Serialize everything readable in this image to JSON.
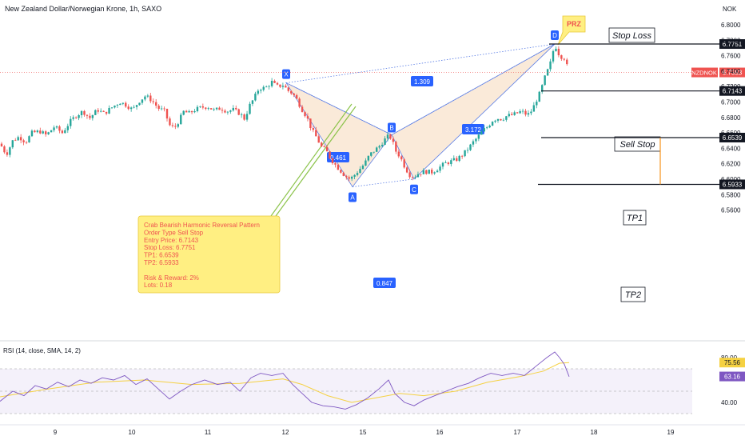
{
  "header": {
    "title": "New Zealand Dollar/Norwegian Krone, 1h, SAXO",
    "currency": "NOK"
  },
  "colors": {
    "up": "#26a69a",
    "down": "#ef5350",
    "pattern_fill": "#f8e3cc",
    "pattern_line": "#5b7ee5",
    "label_bg": "#2962ff",
    "annotation_bg": "#ffef82",
    "rsi_line": "#7e57c2",
    "rsi_ma": "#f5d142",
    "tp_marker": "#f7931a",
    "price_line": "#ef5350"
  },
  "chart_data": {
    "type": "candlestick",
    "symbol": "NZDNOK",
    "x_ticks": [
      "9",
      "10",
      "11",
      "12",
      "15",
      "16",
      "17",
      "18",
      "19"
    ],
    "y_ticks": [
      "6.8000",
      "6.7800",
      "6.7600",
      "6.7400",
      "6.7200",
      "6.7000",
      "6.6800",
      "6.6600",
      "6.6400",
      "6.6200",
      "6.6000",
      "6.5800",
      "6.5600"
    ],
    "ylim": [
      6.5535,
      6.819
    ],
    "current_price": {
      "label": "NZDNOK",
      "value": "6.7383",
      "number": 6.7383
    },
    "close_path": [
      [
        0,
        6.646
      ],
      [
        8,
        6.632
      ],
      [
        16,
        6.65
      ],
      [
        24,
        6.655
      ],
      [
        32,
        6.648
      ],
      [
        40,
        6.66
      ],
      [
        50,
        6.662
      ],
      [
        58,
        6.657
      ],
      [
        68,
        6.668
      ],
      [
        78,
        6.66
      ],
      [
        88,
        6.675
      ],
      [
        96,
        6.683
      ],
      [
        104,
        6.688
      ],
      [
        112,
        6.679
      ],
      [
        122,
        6.69
      ],
      [
        130,
        6.685
      ],
      [
        140,
        6.693
      ],
      [
        150,
        6.7
      ],
      [
        158,
        6.696
      ],
      [
        166,
        6.69
      ],
      [
        174,
        6.701
      ],
      [
        182,
        6.708
      ],
      [
        190,
        6.702
      ],
      [
        198,
        6.692
      ],
      [
        206,
        6.688
      ],
      [
        212,
        6.67
      ],
      [
        218,
        6.666
      ],
      [
        224,
        6.676
      ],
      [
        230,
        6.688
      ],
      [
        236,
        6.685
      ],
      [
        244,
        6.69
      ],
      [
        252,
        6.693
      ],
      [
        260,
        6.694
      ],
      [
        268,
        6.689
      ],
      [
        276,
        6.692
      ],
      [
        284,
        6.688
      ],
      [
        292,
        6.69
      ],
      [
        300,
        6.685
      ],
      [
        306,
        6.678
      ],
      [
        312,
        6.695
      ],
      [
        318,
        6.705
      ],
      [
        324,
        6.718
      ],
      [
        332,
        6.718
      ],
      [
        340,
        6.726
      ],
      [
        346,
        6.72
      ],
      [
        354,
        6.722
      ],
      [
        360,
        6.715
      ],
      [
        366,
        6.711
      ],
      [
        372,
        6.702
      ],
      [
        378,
        6.69
      ],
      [
        384,
        6.68
      ],
      [
        390,
        6.664
      ],
      [
        396,
        6.654
      ],
      [
        402,
        6.642
      ],
      [
        408,
        6.637
      ],
      [
        414,
        6.626
      ],
      [
        420,
        6.618
      ],
      [
        426,
        6.611
      ],
      [
        432,
        6.604
      ],
      [
        438,
        6.6
      ],
      [
        444,
        6.606
      ],
      [
        450,
        6.613
      ],
      [
        456,
        6.62
      ],
      [
        462,
        6.631
      ],
      [
        468,
        6.637
      ],
      [
        474,
        6.642
      ],
      [
        480,
        6.65
      ],
      [
        486,
        6.656
      ],
      [
        490,
        6.653
      ],
      [
        494,
        6.638
      ],
      [
        500,
        6.63
      ],
      [
        506,
        6.617
      ],
      [
        512,
        6.606
      ],
      [
        518,
        6.603
      ],
      [
        524,
        6.608
      ],
      [
        532,
        6.61
      ],
      [
        540,
        6.609
      ],
      [
        548,
        6.614
      ],
      [
        556,
        6.62
      ],
      [
        564,
        6.623
      ],
      [
        572,
        6.626
      ],
      [
        580,
        6.633
      ],
      [
        586,
        6.64
      ],
      [
        592,
        6.648
      ],
      [
        598,
        6.655
      ],
      [
        604,
        6.663
      ],
      [
        610,
        6.668
      ],
      [
        616,
        6.676
      ],
      [
        622,
        6.679
      ],
      [
        628,
        6.678
      ],
      [
        634,
        6.682
      ],
      [
        640,
        6.683
      ],
      [
        646,
        6.685
      ],
      [
        652,
        6.688
      ],
      [
        660,
        6.683
      ],
      [
        666,
        6.69
      ],
      [
        670,
        6.7
      ],
      [
        676,
        6.713
      ],
      [
        682,
        6.733
      ],
      [
        688,
        6.748
      ],
      [
        694,
        6.775
      ],
      [
        700,
        6.76
      ],
      [
        706,
        6.757
      ],
      [
        712,
        6.738
      ]
    ],
    "harmonic_pattern": {
      "name": "Crab Bearish Harmonic Reversal Pattern",
      "points": [
        {
          "label": "X",
          "bar": 358,
          "price": 6.7248
        },
        {
          "label": "A",
          "bar": 441,
          "price": 6.5901
        },
        {
          "label": "B",
          "bar": 490,
          "price": 6.6575
        },
        {
          "label": "C",
          "bar": 518,
          "price": 6.6002
        },
        {
          "label": "D",
          "bar": 694,
          "price": 6.7751
        }
      ],
      "ratios": [
        {
          "value": "1.309",
          "from": "X",
          "to": "D"
        },
        {
          "value": "0.461",
          "from": "X",
          "to": "B"
        },
        {
          "value": "0.847",
          "from": "A",
          "to": "C"
        },
        {
          "value": "3.172",
          "from": "B",
          "to": "D"
        }
      ],
      "prz_label": "PRZ"
    },
    "levels": [
      {
        "name": "Stop Loss",
        "price": 6.7751,
        "price_label": "6.7751"
      },
      {
        "name": "Sell Stop",
        "price": 6.7143,
        "price_label": "6.7143"
      },
      {
        "name": "TP1",
        "price": 6.6539,
        "price_label": "6.6539"
      },
      {
        "name": "TP2",
        "price": 6.5933,
        "price_label": "6.5933"
      }
    ],
    "annotation_lines": [
      "Crab Bearish Harmonic Reversal Pattern",
      "Order Type Sell Stop",
      "Entry Price: 6.7143",
      "Stop Loss: 6.7751",
      "TP1: 6.6539",
      "TP2: 6.5933",
      "",
      "Risk & Reward: 2%",
      "Lots: 0.18"
    ],
    "rsi": {
      "title": "RSI (14, close, SMA, 14, 2)",
      "ylim": [
        30,
        90
      ],
      "ticks": [
        "80.00",
        "40.00"
      ],
      "bands": [
        70,
        50,
        30
      ],
      "rsi_value": "63.16",
      "ma_value": "75.56",
      "rsi_path": [
        [
          0,
          41
        ],
        [
          16,
          50
        ],
        [
          30,
          46
        ],
        [
          44,
          55
        ],
        [
          58,
          52
        ],
        [
          72,
          58
        ],
        [
          86,
          54
        ],
        [
          100,
          60
        ],
        [
          114,
          57
        ],
        [
          128,
          62
        ],
        [
          142,
          60
        ],
        [
          156,
          64
        ],
        [
          170,
          56
        ],
        [
          184,
          61
        ],
        [
          198,
          52
        ],
        [
          212,
          43
        ],
        [
          226,
          50
        ],
        [
          240,
          56
        ],
        [
          256,
          60
        ],
        [
          272,
          56
        ],
        [
          288,
          58
        ],
        [
          300,
          50
        ],
        [
          314,
          62
        ],
        [
          326,
          66
        ],
        [
          340,
          64
        ],
        [
          354,
          66
        ],
        [
          366,
          56
        ],
        [
          378,
          48
        ],
        [
          390,
          40
        ],
        [
          404,
          37
        ],
        [
          418,
          36
        ],
        [
          432,
          34
        ],
        [
          446,
          38
        ],
        [
          460,
          44
        ],
        [
          474,
          52
        ],
        [
          486,
          60
        ],
        [
          494,
          48
        ],
        [
          506,
          40
        ],
        [
          518,
          37
        ],
        [
          530,
          42
        ],
        [
          544,
          46
        ],
        [
          558,
          50
        ],
        [
          572,
          54
        ],
        [
          586,
          57
        ],
        [
          600,
          62
        ],
        [
          614,
          66
        ],
        [
          628,
          64
        ],
        [
          642,
          66
        ],
        [
          656,
          64
        ],
        [
          670,
          72
        ],
        [
          684,
          80
        ],
        [
          694,
          85
        ],
        [
          700,
          80
        ],
        [
          706,
          74
        ],
        [
          712,
          63
        ]
      ],
      "ma_path": [
        [
          0,
          45
        ],
        [
          60,
          52
        ],
        [
          120,
          58
        ],
        [
          180,
          60
        ],
        [
          240,
          56
        ],
        [
          300,
          57
        ],
        [
          354,
          61
        ],
        [
          378,
          56
        ],
        [
          410,
          46
        ],
        [
          440,
          40
        ],
        [
          470,
          44
        ],
        [
          500,
          48
        ],
        [
          530,
          46
        ],
        [
          570,
          50
        ],
        [
          610,
          58
        ],
        [
          650,
          63
        ],
        [
          680,
          68
        ],
        [
          700,
          75
        ],
        [
          712,
          75.56
        ]
      ]
    }
  }
}
